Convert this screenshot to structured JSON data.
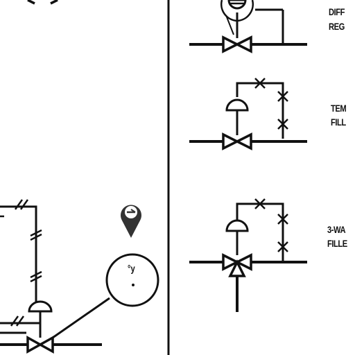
{
  "legend": {
    "differential_regulator": {
      "line1": "DIFF",
      "line2": "REG"
    },
    "temperature_filled": {
      "line1": "TEM",
      "line2": "FILL"
    },
    "three_way_filled": {
      "line1": "3-WA",
      "line2": "FILLE"
    }
  },
  "gauge": {
    "reading": "°y"
  },
  "colors": {
    "ink": "#111111",
    "background": "#ffffff"
  }
}
